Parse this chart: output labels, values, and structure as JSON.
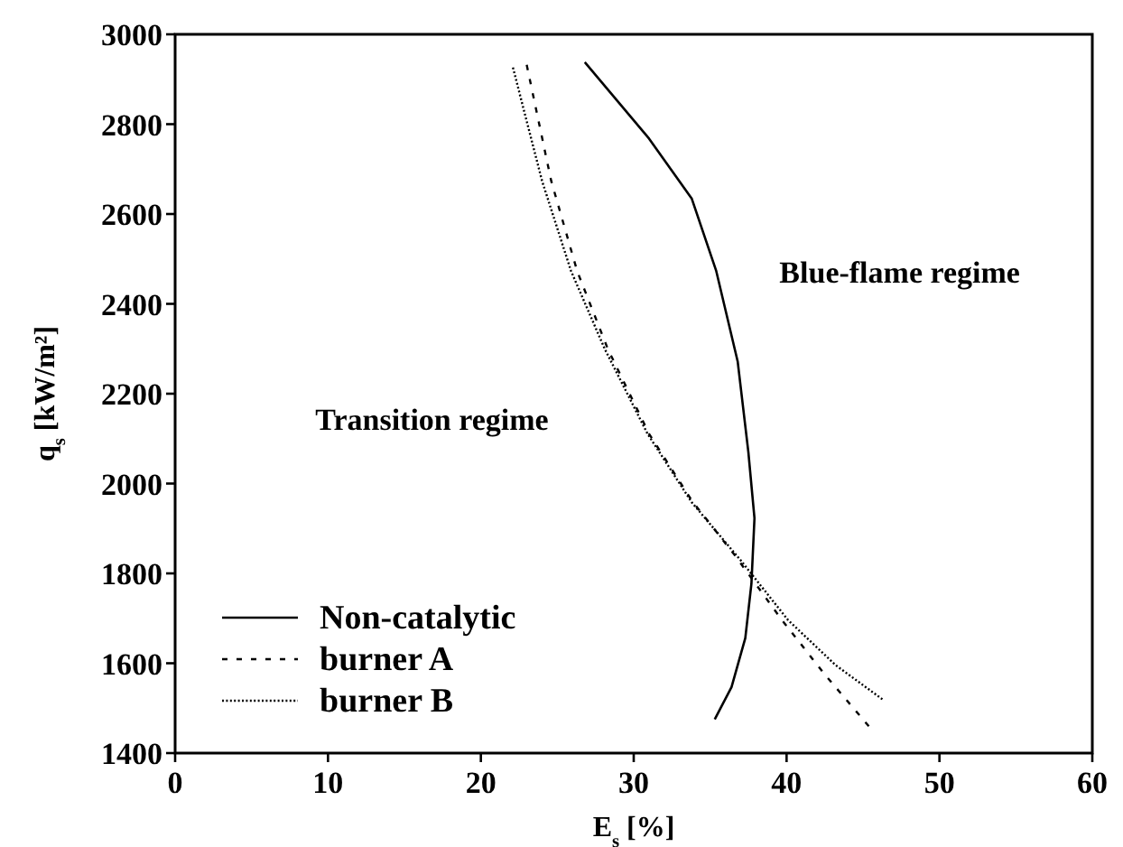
{
  "chart_data": {
    "type": "line",
    "xlabel": "E$_{s}$ [%]",
    "ylabel": "q$_{s}$ [kW/m²]",
    "xlim": [
      0,
      60
    ],
    "xticks": [
      0,
      10,
      20,
      30,
      40,
      50,
      60
    ],
    "ylim": [
      1400,
      3000
    ],
    "yticks": [
      1400,
      1600,
      1800,
      2000,
      2200,
      2400,
      2600,
      2800,
      3000
    ],
    "grid": false,
    "legend": "bottom left",
    "marker": "none",
    "annotations": [
      "Transition regime",
      "Blue-flame regime"
    ],
    "series": [
      {
        "name": "Non-catalytic",
        "color": "#000000",
        "line_style": "solid",
        "x": [
          26.8,
          31.0,
          33.8,
          35.4,
          36.8,
          37.5,
          37.9,
          37.7,
          37.3,
          36.4,
          35.3
        ],
        "values": [
          2938,
          2768,
          2634,
          2473,
          2272,
          2070,
          1923,
          1777,
          1656,
          1547,
          1475
        ]
      },
      {
        "name": "burner A",
        "color": "#000000",
        "line_style": "dashed",
        "x": [
          23.0,
          24.6,
          26.3,
          28.3,
          31.0,
          33.8,
          36.6,
          39.7,
          42.5,
          45.4
        ],
        "values": [
          2932,
          2674,
          2473,
          2300,
          2111,
          1962,
          1841,
          1696,
          1575,
          1459
        ]
      },
      {
        "name": "burner B",
        "color": "#000000",
        "line_style": "dotted",
        "x": [
          22.1,
          24.0,
          25.9,
          28.1,
          30.9,
          33.8,
          37.0,
          40.1,
          43.2,
          46.3
        ],
        "values": [
          2926,
          2674,
          2473,
          2300,
          2111,
          1958,
          1829,
          1696,
          1596,
          1519
        ]
      }
    ]
  }
}
